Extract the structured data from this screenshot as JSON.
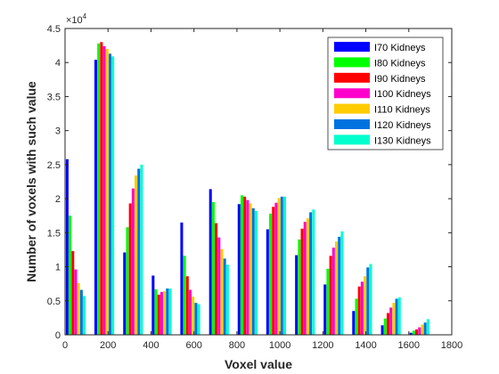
{
  "chart_data": {
    "type": "bar",
    "xlabel": "Voxel value",
    "ylabel": "Number of voxels with such value",
    "xlim": [
      0,
      1800
    ],
    "ylim": [
      0,
      45000
    ],
    "x_ticks": [
      0,
      200,
      400,
      600,
      800,
      1000,
      1200,
      1400,
      1600,
      1800
    ],
    "y_ticks": [
      0,
      5000,
      10000,
      15000,
      20000,
      25000,
      30000,
      35000,
      40000,
      45000
    ],
    "y_tick_labels": [
      "0",
      "0.5",
      "1",
      "1.5",
      "2",
      "2.5",
      "3",
      "3.5",
      "4",
      "4.5"
    ],
    "y_multiplier": {
      "base": "×10",
      "exponent": "4"
    },
    "grid": false,
    "legend_position": "top-right",
    "categories": [
      50,
      183,
      317,
      450,
      583,
      717,
      850,
      983,
      1117,
      1250,
      1383,
      1517,
      1650
    ],
    "series": [
      {
        "name": "I70 Kidneys",
        "color": "#0000ff",
        "values": [
          25800,
          40400,
          12100,
          8700,
          16500,
          21400,
          19200,
          15500,
          11700,
          7400,
          3500,
          1400,
          300
        ]
      },
      {
        "name": "I80 Kidneys",
        "color": "#00ff00",
        "values": [
          17500,
          42800,
          15800,
          6700,
          11600,
          19500,
          20500,
          17800,
          14000,
          9700,
          5300,
          2400,
          600
        ]
      },
      {
        "name": "I90 Kidneys",
        "color": "#ff0000",
        "values": [
          12300,
          43000,
          19300,
          5900,
          8600,
          16400,
          20300,
          18800,
          15600,
          11600,
          7100,
          3200,
          800
        ]
      },
      {
        "name": "I100 Kidneys",
        "color": "#ff00cc",
        "values": [
          9600,
          42400,
          21500,
          6300,
          6600,
          14300,
          19800,
          19400,
          16600,
          12800,
          7800,
          4000,
          1100
        ]
      },
      {
        "name": "I110 Kidneys",
        "color": "#ffcc00",
        "values": [
          7600,
          42000,
          23400,
          6400,
          5600,
          12600,
          19300,
          20100,
          17100,
          13700,
          8600,
          4700,
          1500
        ]
      },
      {
        "name": "I120 Kidneys",
        "color": "#0072e0",
        "values": [
          6600,
          41300,
          24400,
          6800,
          4700,
          11200,
          18600,
          20300,
          18000,
          14400,
          9900,
          5300,
          1800
        ]
      },
      {
        "name": "I130 Kidneys",
        "color": "#00ffcc",
        "values": [
          5700,
          40900,
          25000,
          6800,
          4500,
          10300,
          18200,
          20300,
          18400,
          15200,
          10400,
          5500,
          2300
        ]
      }
    ]
  }
}
